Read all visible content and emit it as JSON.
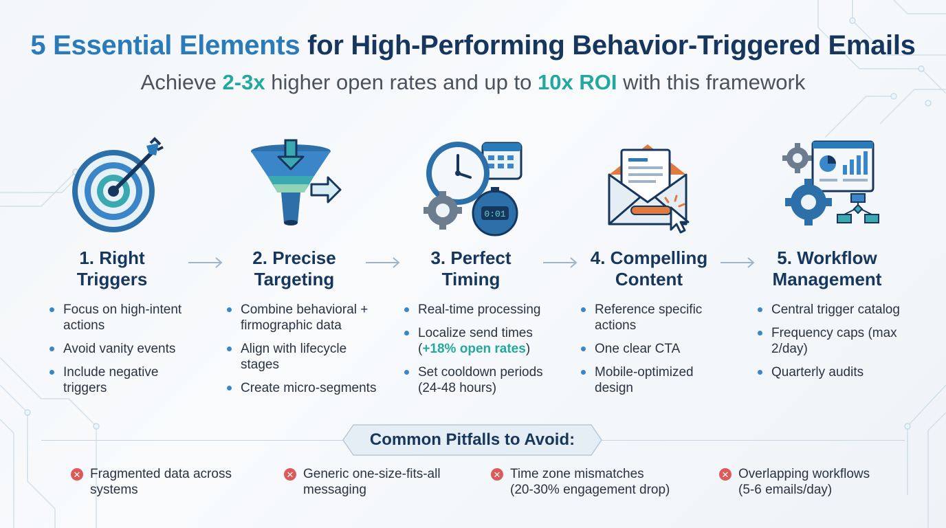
{
  "header": {
    "title_highlight": "5 Essential Elements",
    "title_rest": " for High-Performing Behavior-Triggered Emails",
    "subtitle_part1": "Achieve ",
    "subtitle_accent1": "2-3x",
    "subtitle_part2": " higher open rates and up to ",
    "subtitle_accent2": "10x ROI",
    "subtitle_part3": " with this framework"
  },
  "colors": {
    "title_navy": "#16365e",
    "title_blue": "#2a7bb8",
    "accent_teal": "#23a89d",
    "bullet_blue": "#3a86c8",
    "pitfall_red": "#dd5a5a"
  },
  "elements": [
    {
      "icon": "target-arrow-icon",
      "title_line1": "1. Right",
      "title_line2": "Triggers",
      "bullets": [
        {
          "text": "Focus on high-intent actions"
        },
        {
          "text": "Avoid vanity events"
        },
        {
          "text": "Include negative triggers"
        }
      ]
    },
    {
      "icon": "funnel-icon",
      "title_line1": "2. Precise",
      "title_line2": "Targeting",
      "bullets": [
        {
          "text": "Combine behavioral + firmographic data"
        },
        {
          "text": "Align with lifecycle stages"
        },
        {
          "text": "Create micro-segments"
        }
      ]
    },
    {
      "icon": "clock-calendar-timer-icon",
      "title_line1": "3. Perfect",
      "title_line2": "Timing",
      "bullets": [
        {
          "text": "Real-time processing"
        },
        {
          "text": "Localize send times (",
          "highlight": "+18% open rates",
          "after": ")"
        },
        {
          "text": "Set cooldown periods (24-48 hours)"
        }
      ],
      "timer_display": "0:01"
    },
    {
      "icon": "envelope-cta-icon",
      "title_line1": "4. Compelling",
      "title_line2": "Content",
      "bullets": [
        {
          "text": "Reference specific actions"
        },
        {
          "text": "One clear CTA"
        },
        {
          "text": "Mobile-optimized design"
        }
      ]
    },
    {
      "icon": "workflow-dashboard-icon",
      "title_line1": "5. Workflow",
      "title_line2": "Management",
      "bullets": [
        {
          "text": "Central trigger catalog"
        },
        {
          "text": "Frequency caps (max 2/day)"
        },
        {
          "text": "Quarterly audits"
        }
      ]
    }
  ],
  "pitfalls": {
    "heading": "Common Pitfalls to Avoid:",
    "items": [
      {
        "line1": "Fragmented data across",
        "line2": "systems"
      },
      {
        "line1": "Generic one-size-fits-all",
        "line2": "messaging"
      },
      {
        "line1": "Time zone mismatches",
        "line2": "(20-30% engagement drop)"
      },
      {
        "line1": "Overlapping workflows",
        "line2": "(5-6 emails/day)"
      }
    ]
  }
}
